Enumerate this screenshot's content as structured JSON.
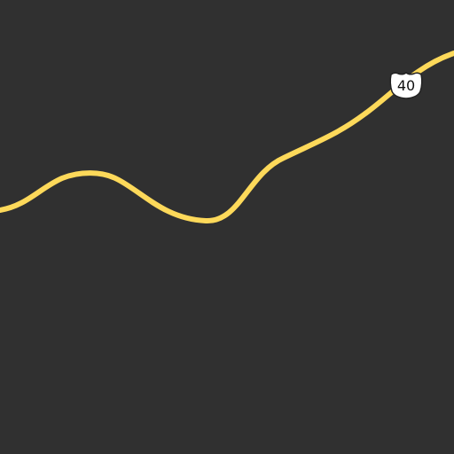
{
  "map": {
    "background_color": "#303030",
    "road": {
      "type": "highway",
      "color": "#fdd95a",
      "casing_color": "#f2c94c",
      "shield": {
        "route_number": "40",
        "shield_style": "us-highway-shield",
        "shield_fill": "#ffffff",
        "shield_outline": "#222222",
        "text_color": "#111111"
      }
    }
  }
}
